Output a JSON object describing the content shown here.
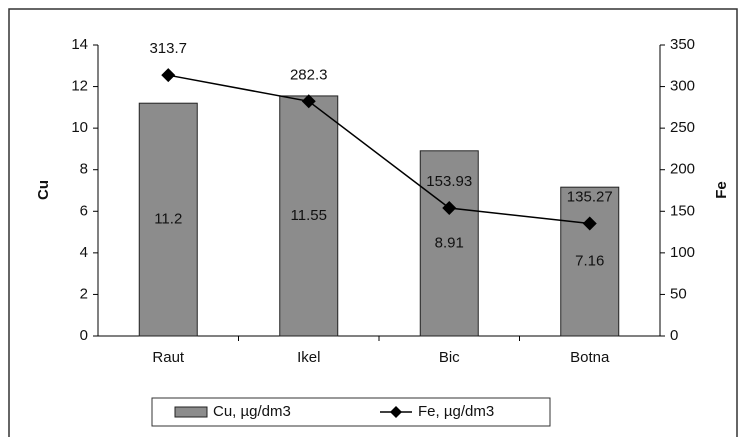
{
  "chart_data": {
    "type": "bar",
    "categories": [
      "Raut",
      "Ikel",
      "Bic",
      "Botna"
    ],
    "series": [
      {
        "name": "Cu, µg/dm3",
        "type": "bar",
        "color": "#8c8c8c",
        "values": [
          11.2,
          11.55,
          8.91,
          7.16
        ]
      },
      {
        "name": "Fe, µg/dm3",
        "type": "line",
        "axis": "y2",
        "color": "#000000",
        "values": [
          313.7,
          282.3,
          153.93,
          135.27
        ]
      }
    ],
    "ylabel": "Cu",
    "y2label": "Fe",
    "ylim": [
      0,
      14
    ],
    "yticks": [
      0,
      2,
      4,
      6,
      8,
      10,
      12,
      14
    ],
    "y2lim": [
      0,
      350
    ],
    "y2ticks": [
      0,
      50,
      100,
      150,
      200,
      250,
      300,
      350
    ],
    "grid": false,
    "legend": "bottom"
  }
}
